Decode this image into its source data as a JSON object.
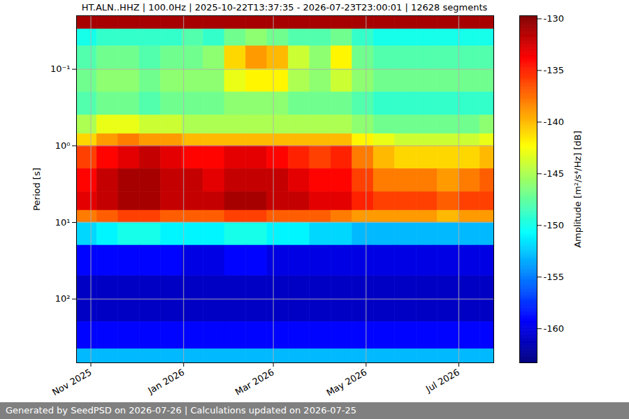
{
  "chart_data": {
    "type": "heatmap",
    "title": "HT.ALN..HHZ | 100.0Hz | 2025-10-22T13:37:35 - 2026-07-23T23:00:01 | 12628 segments",
    "ylabel": "Period [s]",
    "caption": "Generated by SeedPSD on 2026-07-26 | Calculations updated on 2026-07-25",
    "color": "jet",
    "log": "y",
    "grid": true,
    "xlim": [
      "2025-10-22T13:37:35",
      "2026-07-23T23:00:01"
    ],
    "xticks": [
      {
        "value": "2025-11-01",
        "label": "Nov 2025"
      },
      {
        "value": "2026-01-01",
        "label": "Jan 2026"
      },
      {
        "value": "2026-03-01",
        "label": "Mar 2026"
      },
      {
        "value": "2026-05-01",
        "label": "May 2026"
      },
      {
        "value": "2026-07-01",
        "label": "Jul 2026"
      }
    ],
    "ylim": [
      680,
      0.02
    ],
    "yticks": [
      {
        "value": 0.1,
        "label": "10⁻¹"
      },
      {
        "value": 1,
        "label": "10⁰"
      },
      {
        "value": 10,
        "label": "10¹"
      },
      {
        "value": 100,
        "label": "10²"
      }
    ],
    "time_edges": [
      "2025-10-22T13:37:35",
      "2025-11-05",
      "2025-11-19",
      "2025-12-03",
      "2025-12-17",
      "2025-12-31",
      "2026-01-14",
      "2026-01-28",
      "2026-02-11",
      "2026-02-25",
      "2026-03-11",
      "2026-03-25",
      "2026-04-08",
      "2026-04-22",
      "2026-05-06",
      "2026-05-20",
      "2026-06-03",
      "2026-06-17",
      "2026-07-01",
      "2026-07-15",
      "2026-07-23T23:00:01"
    ],
    "period_edges": [
      0.02,
      0.03,
      0.05,
      0.1,
      0.2,
      0.4,
      0.7,
      1,
      2,
      4,
      7,
      10,
      20,
      50,
      200,
      450,
      680
    ],
    "cells": [
      [
        -131,
        -131,
        -131,
        -131,
        -131,
        -131,
        -131,
        -131,
        -131,
        -131,
        -131,
        -131,
        -131,
        -131,
        -131,
        -131,
        -131,
        -131,
        -131,
        -131
      ],
      [
        -150,
        -149,
        -149,
        -149,
        -149,
        -148,
        -149,
        -147,
        -146,
        -147,
        -148,
        -148,
        -147,
        -149,
        -150,
        -150,
        -150,
        -150,
        -150,
        -150
      ],
      [
        -148,
        -147,
        -147,
        -148,
        -147,
        -147,
        -146,
        -141,
        -139,
        -140,
        -144,
        -146,
        -142,
        -147,
        -148,
        -148,
        -148,
        -148,
        -148,
        -148
      ],
      [
        -147,
        -146,
        -146,
        -147,
        -146,
        -146,
        -146,
        -143,
        -142,
        -142,
        -145,
        -146,
        -144,
        -146,
        -147,
        -147,
        -147,
        -147,
        -147,
        -147
      ],
      [
        -148,
        -147,
        -147,
        -148,
        -147,
        -147,
        -147,
        -146,
        -146,
        -146,
        -147,
        -147,
        -147,
        -148,
        -149,
        -149,
        -149,
        -149,
        -149,
        -149
      ],
      [
        -145,
        -143,
        -143,
        -144,
        -144,
        -145,
        -145,
        -145,
        -145,
        -145,
        -145,
        -145,
        -145,
        -146,
        -147,
        -147,
        -147,
        -147,
        -147,
        -146
      ],
      [
        -141,
        -139,
        -138,
        -139,
        -139,
        -140,
        -140,
        -140,
        -140,
        -140,
        -140,
        -140,
        -140,
        -142,
        -143,
        -144,
        -144,
        -144,
        -144,
        -143
      ],
      [
        -136,
        -134,
        -133,
        -132,
        -133,
        -134,
        -134,
        -133,
        -133,
        -134,
        -135,
        -136,
        -135,
        -138,
        -140,
        -141,
        -141,
        -141,
        -141,
        -140
      ],
      [
        -134,
        -132,
        -131,
        -131,
        -132,
        -132,
        -133,
        -132,
        -132,
        -132,
        -133,
        -134,
        -134,
        -136,
        -138,
        -138,
        -138,
        -139,
        -138,
        -137
      ],
      [
        -133,
        -132,
        -131,
        -131,
        -132,
        -132,
        -132,
        -131,
        -131,
        -132,
        -132,
        -133,
        -133,
        -135,
        -136,
        -136,
        -136,
        -137,
        -136,
        -136
      ],
      [
        -138,
        -137,
        -136,
        -136,
        -137,
        -137,
        -137,
        -136,
        -136,
        -137,
        -137,
        -137,
        -138,
        -139,
        -139,
        -139,
        -139,
        -140,
        -139,
        -139
      ],
      [
        -152,
        -151,
        -150,
        -150,
        -151,
        -151,
        -151,
        -150,
        -150,
        -151,
        -151,
        -152,
        -152,
        -153,
        -153,
        -153,
        -153,
        -153,
        -153,
        -153
      ],
      [
        -159,
        -159,
        -159,
        -159,
        -159,
        -160,
        -160,
        -159,
        -159,
        -160,
        -160,
        -160,
        -160,
        -160,
        -160,
        -160,
        -160,
        -160,
        -160,
        -160
      ],
      [
        -161,
        -161,
        -161,
        -161,
        -161,
        -161,
        -161,
        -161,
        -161,
        -161,
        -161,
        -161,
        -161,
        -161,
        -161,
        -161,
        -161,
        -161,
        -161,
        -161
      ],
      [
        -159,
        -159,
        -159,
        -159,
        -159,
        -159,
        -159,
        -159,
        -159,
        -159,
        -159,
        -159,
        -159,
        -159,
        -159,
        -159,
        -159,
        -159,
        -159,
        -159
      ],
      [
        -153,
        -153,
        -153,
        -153,
        -153,
        -153,
        -153,
        -153,
        -153,
        -153,
        -153,
        -153,
        -153,
        -153,
        -153,
        -153,
        -153,
        -153,
        -153,
        -153
      ]
    ],
    "colorbar": {
      "label": "Amplitude [m²/s⁴/Hz] [dB]",
      "range": [
        -163.3,
        -129.7
      ],
      "ticks": [
        -160,
        -155,
        -150,
        -145,
        -140,
        -135,
        -130
      ]
    }
  }
}
